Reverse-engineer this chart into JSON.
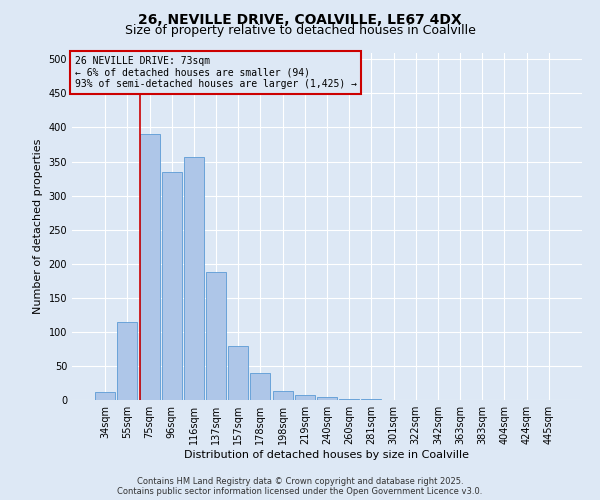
{
  "title": "26, NEVILLE DRIVE, COALVILLE, LE67 4DX",
  "subtitle": "Size of property relative to detached houses in Coalville",
  "xlabel": "Distribution of detached houses by size in Coalville",
  "ylabel": "Number of detached properties",
  "categories": [
    "34sqm",
    "55sqm",
    "75sqm",
    "96sqm",
    "116sqm",
    "137sqm",
    "157sqm",
    "178sqm",
    "198sqm",
    "219sqm",
    "240sqm",
    "260sqm",
    "281sqm",
    "301sqm",
    "322sqm",
    "342sqm",
    "363sqm",
    "383sqm",
    "404sqm",
    "424sqm",
    "445sqm"
  ],
  "values": [
    12,
    115,
    390,
    335,
    357,
    188,
    79,
    40,
    13,
    8,
    5,
    1,
    1,
    0,
    0,
    0,
    0,
    0,
    0,
    0,
    0
  ],
  "bar_color": "#aec6e8",
  "bar_edge_color": "#5b9bd5",
  "bg_color": "#dde8f5",
  "grid_color": "#ffffff",
  "annotation_box_text": "26 NEVILLE DRIVE: 73sqm\n← 6% of detached houses are smaller (94)\n93% of semi-detached houses are larger (1,425) →",
  "vline_color": "#cc0000",
  "vline_x_index": 2,
  "ylim": [
    0,
    510
  ],
  "yticks": [
    0,
    50,
    100,
    150,
    200,
    250,
    300,
    350,
    400,
    450,
    500
  ],
  "footer_line1": "Contains HM Land Registry data © Crown copyright and database right 2025.",
  "footer_line2": "Contains public sector information licensed under the Open Government Licence v3.0.",
  "title_fontsize": 10,
  "subtitle_fontsize": 9,
  "tick_fontsize": 7,
  "ylabel_fontsize": 8,
  "xlabel_fontsize": 8,
  "annotation_fontsize": 7,
  "footer_fontsize": 6
}
